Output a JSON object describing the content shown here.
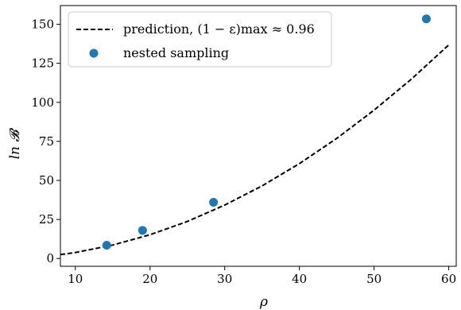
{
  "chart_data": {
    "type": "scatter",
    "xlabel": "ρ",
    "ylabel": "ln 𝓑",
    "xlim": [
      8,
      61
    ],
    "ylim": [
      -5,
      162
    ],
    "xticks": [
      10,
      20,
      30,
      40,
      50,
      60
    ],
    "yticks": [
      0,
      25,
      50,
      75,
      100,
      125,
      150
    ],
    "grid": false,
    "legend_position": "top-left",
    "series": [
      {
        "name": "prediction, (1 − ε)max ≈ 0.96",
        "kind": "line",
        "style": "dashed",
        "color": "#000000",
        "x": [
          8,
          10,
          15,
          20,
          25,
          30,
          35,
          40,
          45,
          50,
          55,
          60
        ],
        "y": [
          2.5,
          3.8,
          8.6,
          15.2,
          23.7,
          34.2,
          46.5,
          60.8,
          76.9,
          95.0,
          114.9,
          136.8
        ]
      },
      {
        "name": "nested sampling",
        "kind": "scatter",
        "color": "#1f77b4",
        "x": [
          14.2,
          19.0,
          28.5,
          57.0
        ],
        "y": [
          8.5,
          18.0,
          36.0,
          153.5
        ]
      }
    ]
  }
}
